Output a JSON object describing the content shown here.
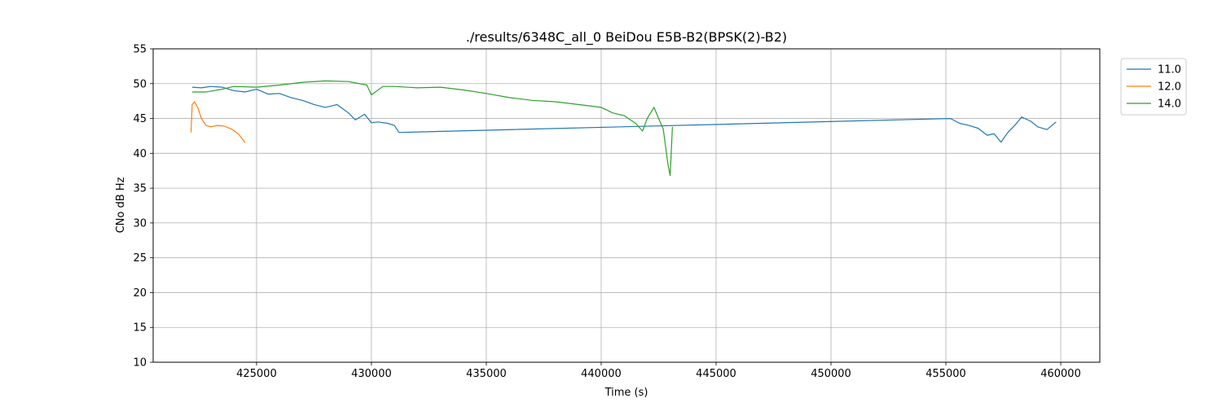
{
  "chart_data": {
    "type": "line",
    "title": "./results/6348C_all_0 BeiDou E5B-B2(BPSK(2)-B2)",
    "xlabel": "Time (s)",
    "ylabel": "CNo dB Hz",
    "xlim": [
      420500,
      461700
    ],
    "ylim": [
      10,
      55
    ],
    "xticks": [
      425000,
      430000,
      435000,
      440000,
      445000,
      450000,
      455000,
      460000
    ],
    "xtick_labels": [
      "425000",
      "430000",
      "435000",
      "440000",
      "445000",
      "450000",
      "455000",
      "460000"
    ],
    "yticks": [
      10,
      15,
      20,
      25,
      30,
      35,
      40,
      45,
      50,
      55
    ],
    "ytick_labels": [
      "10",
      "15",
      "20",
      "25",
      "30",
      "35",
      "40",
      "45",
      "50",
      "55"
    ],
    "grid": true,
    "legend_position": "outside-top-right",
    "series": [
      {
        "name": "11.0",
        "color": "#1f77b4",
        "x": [
          422200,
          422600,
          423000,
          423500,
          424000,
          424500,
          425000,
          425500,
          426000,
          426500,
          427000,
          427500,
          428000,
          428500,
          429000,
          429300,
          429700,
          430000,
          430300,
          430700,
          431000,
          431200,
          455200,
          455600,
          456000,
          456400,
          456800,
          457100,
          457400,
          457700,
          458000,
          458300,
          458700,
          459000,
          459400,
          459800
        ],
        "y": [
          49.5,
          49.4,
          49.6,
          49.5,
          49.0,
          48.8,
          49.2,
          48.5,
          48.6,
          48.0,
          47.6,
          47.0,
          46.6,
          47.0,
          45.8,
          44.8,
          45.6,
          44.4,
          44.5,
          44.3,
          44.0,
          43.0,
          45.0,
          44.3,
          44.0,
          43.6,
          42.6,
          42.8,
          41.6,
          43.0,
          44.0,
          45.2,
          44.6,
          43.8,
          43.4,
          44.5
        ]
      },
      {
        "name": "12.0",
        "color": "#ff7f0e",
        "x": [
          422150,
          422200,
          422300,
          422450,
          422600,
          422800,
          423000,
          423300,
          423600,
          423900,
          424200,
          424400,
          424500
        ],
        "y": [
          43.0,
          47.0,
          47.4,
          46.5,
          45.0,
          44.0,
          43.8,
          44.0,
          43.9,
          43.5,
          42.8,
          42.0,
          41.5
        ]
      },
      {
        "name": "14.0",
        "color": "#2ca02c",
        "x": [
          422200,
          422800,
          423500,
          424000,
          425000,
          426000,
          427000,
          428000,
          429000,
          429800,
          430000,
          430500,
          431000,
          432000,
          433000,
          434000,
          435000,
          436000,
          437000,
          438000,
          439000,
          440000,
          440500,
          441000,
          441500,
          441800,
          442000,
          442300,
          442500,
          442700,
          442900,
          443000,
          443100
        ],
        "y": [
          48.8,
          48.8,
          49.2,
          49.6,
          49.5,
          49.8,
          50.2,
          50.4,
          50.3,
          49.8,
          48.4,
          49.6,
          49.6,
          49.4,
          49.5,
          49.1,
          48.6,
          48.0,
          47.6,
          47.4,
          47.0,
          46.6,
          45.8,
          45.4,
          44.3,
          43.2,
          45.0,
          46.6,
          45.0,
          43.5,
          38.5,
          36.8,
          43.8
        ]
      }
    ]
  }
}
